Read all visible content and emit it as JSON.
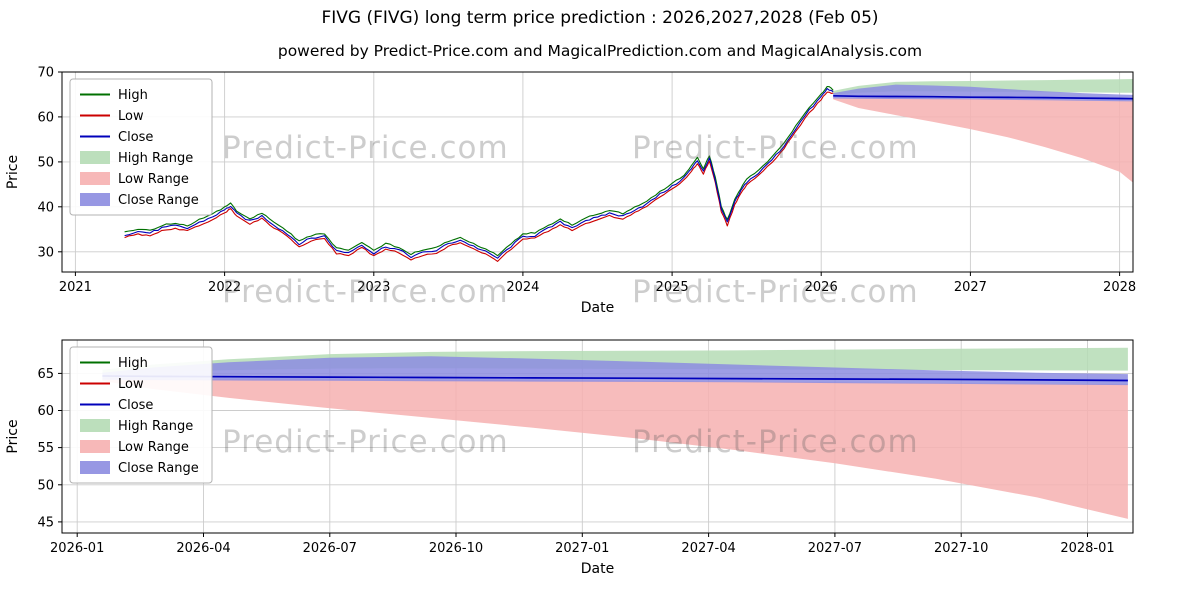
{
  "title": "FIVG (FIVG) long term price prediction : 2026,2027,2028 (Feb 05)",
  "subtitle": "powered by Predict-Price.com and MagicalPrediction.com and MagicalAnalysis.com",
  "watermark": "Predict-Price.com",
  "colors": {
    "high": "#007000",
    "low": "#cc0000",
    "close": "#0000bb",
    "high_range": "#b5dcb5",
    "low_range": "#f6b0b0",
    "close_range": "#8c8ce0",
    "grid": "#cccccc"
  },
  "legend": [
    "High",
    "Low",
    "Close",
    "High Range",
    "Low Range",
    "Close Range"
  ],
  "chart_data": [
    {
      "type": "line",
      "title": "FIVG long term price prediction - overview",
      "xlabel": "Date",
      "ylabel": "Price",
      "xlim": [
        2020.91,
        2028.09
      ],
      "ylim": [
        25.5,
        70
      ],
      "xticks": [
        2021,
        2022,
        2023,
        2024,
        2025,
        2026,
        2027,
        2028
      ],
      "yticks": [
        30,
        40,
        50,
        60,
        70
      ],
      "grid": true,
      "legend_position": "upper left",
      "historical": {
        "x": [
          2021.33,
          2021.42,
          2021.5,
          2021.58,
          2021.67,
          2021.75,
          2021.83,
          2021.92,
          2022.0,
          2022.04,
          2022.08,
          2022.17,
          2022.25,
          2022.33,
          2022.42,
          2022.5,
          2022.58,
          2022.67,
          2022.75,
          2022.83,
          2022.92,
          2023.0,
          2023.08,
          2023.17,
          2023.25,
          2023.33,
          2023.42,
          2023.5,
          2023.58,
          2023.67,
          2023.75,
          2023.83,
          2023.92,
          2024.0,
          2024.08,
          2024.17,
          2024.25,
          2024.33,
          2024.42,
          2024.5,
          2024.58,
          2024.67,
          2024.75,
          2024.83,
          2024.92,
          2025.0,
          2025.08,
          2025.13,
          2025.17,
          2025.21,
          2025.25,
          2025.29,
          2025.33,
          2025.37,
          2025.42,
          2025.46,
          2025.5,
          2025.58,
          2025.67,
          2025.75,
          2025.83,
          2025.92,
          2026.0,
          2026.04,
          2026.08
        ],
        "close": [
          33.8,
          34.5,
          34.2,
          35.3,
          35.8,
          35.2,
          36.5,
          37.8,
          39.3,
          40.2,
          38.5,
          36.8,
          38.0,
          36.0,
          34.0,
          31.8,
          33.0,
          33.5,
          30.2,
          29.8,
          31.6,
          29.6,
          31.2,
          30.4,
          28.9,
          29.8,
          30.3,
          31.8,
          32.6,
          31.2,
          30.0,
          28.6,
          31.2,
          33.4,
          33.6,
          35.2,
          36.6,
          35.4,
          37.0,
          37.6,
          38.6,
          37.9,
          39.4,
          40.6,
          42.8,
          44.5,
          46.5,
          48.5,
          50.3,
          48.0,
          50.8,
          46.0,
          39.5,
          36.5,
          41.0,
          43.5,
          45.5,
          47.5,
          50.5,
          53.5,
          57.5,
          61.5,
          64.5,
          66.2,
          65.6
        ]
      },
      "forecast": {
        "x": [
          2026.08,
          2026.25,
          2026.5,
          2026.75,
          2027.0,
          2027.25,
          2027.5,
          2027.75,
          2028.0,
          2028.09
        ],
        "high_upper": [
          65.8,
          66.9,
          67.8,
          67.95,
          68.0,
          68.1,
          68.2,
          68.3,
          68.4,
          68.45
        ],
        "high_lower": [
          65.0,
          65.4,
          65.7,
          65.7,
          65.65,
          65.6,
          65.5,
          65.45,
          65.4,
          65.4
        ],
        "close_upper": [
          65.3,
          66.3,
          67.2,
          67.0,
          66.7,
          66.2,
          65.7,
          65.3,
          65.0,
          64.9
        ],
        "close_lower": [
          64.1,
          64.05,
          64.0,
          63.95,
          63.9,
          63.8,
          63.7,
          63.6,
          63.5,
          63.45
        ],
        "low_upper": [
          64.3,
          64.25,
          64.2,
          64.15,
          64.05,
          63.95,
          63.85,
          63.75,
          63.65,
          63.6
        ],
        "low_lower": [
          63.9,
          62.0,
          60.4,
          58.9,
          57.3,
          55.5,
          53.3,
          50.8,
          47.8,
          45.4
        ],
        "close": [
          64.7,
          64.6,
          64.55,
          64.5,
          64.4,
          64.35,
          64.3,
          64.2,
          64.1,
          64.05
        ]
      }
    },
    {
      "type": "area",
      "title": "FIVG prediction detail 2026-2028",
      "xlabel": "Date",
      "ylabel": "Price",
      "xlim": [
        2025.97,
        2028.09
      ],
      "ylim": [
        43.5,
        69.5
      ],
      "xtick_vals": [
        2026.0,
        2026.25,
        2026.5,
        2026.75,
        2027.0,
        2027.25,
        2027.5,
        2027.75,
        2028.0
      ],
      "xtick_labels": [
        "2026-01",
        "2026-04",
        "2026-07",
        "2026-10",
        "2027-01",
        "2027-04",
        "2027-07",
        "2027-10",
        "2028-01"
      ],
      "yticks": [
        45,
        50,
        55,
        60,
        65
      ],
      "grid": true,
      "legend_position": "upper left",
      "forecast": {
        "x": [
          2026.05,
          2026.15,
          2026.3,
          2026.5,
          2026.7,
          2026.9,
          2027.1,
          2027.3,
          2027.5,
          2027.7,
          2027.9,
          2028.08
        ],
        "high_upper": [
          65.5,
          66.2,
          66.9,
          67.6,
          67.9,
          68.0,
          68.05,
          68.1,
          68.2,
          68.3,
          68.4,
          68.45
        ],
        "high_lower": [
          64.9,
          65.2,
          65.45,
          65.65,
          65.7,
          65.65,
          65.6,
          65.55,
          65.5,
          65.45,
          65.4,
          65.38
        ],
        "close_upper": [
          65.1,
          65.8,
          66.5,
          67.1,
          67.3,
          67.0,
          66.6,
          66.2,
          65.8,
          65.4,
          65.1,
          64.9
        ],
        "close_lower": [
          64.15,
          64.1,
          64.05,
          64.0,
          63.95,
          63.9,
          63.85,
          63.8,
          63.7,
          63.6,
          63.5,
          63.42
        ],
        "low_upper": [
          64.35,
          64.3,
          64.25,
          64.2,
          64.15,
          64.1,
          64.0,
          63.9,
          63.8,
          63.7,
          63.6,
          63.55
        ],
        "low_lower": [
          64.0,
          62.9,
          61.7,
          60.3,
          59.0,
          57.7,
          56.3,
          54.7,
          52.9,
          50.8,
          48.3,
          45.4
        ],
        "close": [
          64.65,
          64.6,
          64.55,
          64.5,
          64.45,
          64.4,
          64.35,
          64.3,
          64.25,
          64.2,
          64.12,
          64.05
        ]
      }
    }
  ]
}
